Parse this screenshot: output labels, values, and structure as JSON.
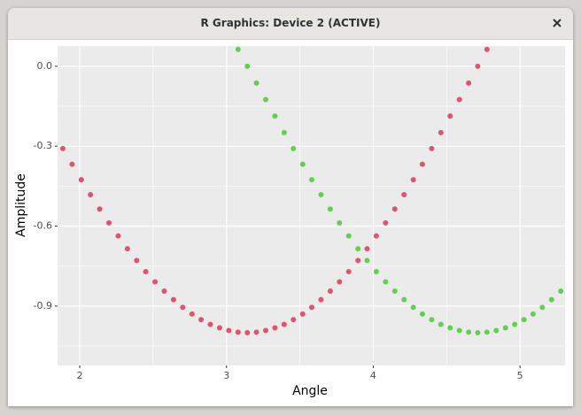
{
  "window": {
    "title": "R Graphics: Device 2 (ACTIVE)"
  },
  "chart_data": {
    "type": "scatter",
    "x_label": "Angle",
    "y_label": "Amplitude",
    "xlim": [
      1.849,
      5.307
    ],
    "ylim": [
      -1.123,
      0.076
    ],
    "xticks": [
      2,
      3,
      4,
      5
    ],
    "yticks": [
      {
        "value": 0,
        "label": "0.0"
      },
      -0.3,
      -0.6,
      -0.9
    ],
    "xminor": [
      2.5,
      3.5,
      4.5
    ],
    "yminor": [
      -0.15,
      -0.45,
      -0.75,
      -1.05
    ],
    "grid": true,
    "panel_color": "#ebebeb",
    "series": [
      {
        "color": "#df536b",
        "x": [
          1.885,
          1.948,
          2.011,
          2.073,
          2.136,
          2.199,
          2.262,
          2.325,
          2.388,
          2.45,
          2.513,
          2.576,
          2.639,
          2.702,
          2.765,
          2.827,
          2.89,
          2.953,
          3.016,
          3.079,
          3.142,
          3.204,
          3.267,
          3.33,
          3.393,
          3.456,
          3.519,
          3.581,
          3.644,
          3.707,
          3.77,
          3.833,
          3.896,
          3.958,
          4.021,
          4.084,
          4.147,
          4.21,
          4.273,
          4.335,
          4.398,
          4.461,
          4.524,
          4.587,
          4.65,
          4.712,
          4.775
        ],
        "values": [
          -0.309,
          -0.368,
          -0.426,
          -0.482,
          -0.536,
          -0.588,
          -0.637,
          -0.685,
          -0.729,
          -0.771,
          -0.809,
          -0.844,
          -0.876,
          -0.905,
          -0.93,
          -0.951,
          -0.969,
          -0.982,
          -0.992,
          -0.998,
          -1,
          -0.998,
          -0.992,
          -0.982,
          -0.969,
          -0.951,
          -0.93,
          -0.905,
          -0.876,
          -0.844,
          -0.809,
          -0.771,
          -0.729,
          -0.685,
          -0.637,
          -0.588,
          -0.536,
          -0.482,
          -0.426,
          -0.368,
          -0.309,
          -0.249,
          -0.187,
          -0.125,
          -0.063,
          0,
          0.063
        ]
      },
      {
        "color": "#61d04f",
        "x": [
          3.079,
          3.142,
          3.204,
          3.267,
          3.33,
          3.393,
          3.456,
          3.519,
          3.581,
          3.644,
          3.707,
          3.77,
          3.833,
          3.896,
          3.958,
          4.021,
          4.084,
          4.147,
          4.21,
          4.273,
          4.335,
          4.398,
          4.461,
          4.524,
          4.587,
          4.65,
          4.712,
          4.775,
          4.838,
          4.901,
          4.964,
          5.027,
          5.089,
          5.152,
          5.215,
          5.278
        ],
        "values": [
          0.063,
          0,
          -0.063,
          -0.125,
          -0.187,
          -0.249,
          -0.309,
          -0.368,
          -0.426,
          -0.482,
          -0.536,
          -0.588,
          -0.637,
          -0.685,
          -0.729,
          -0.771,
          -0.809,
          -0.844,
          -0.876,
          -0.905,
          -0.93,
          -0.951,
          -0.969,
          -0.982,
          -0.992,
          -0.998,
          -1,
          -0.998,
          -0.992,
          -0.982,
          -0.969,
          -0.951,
          -0.93,
          -0.905,
          -0.876,
          -0.844
        ]
      }
    ]
  }
}
